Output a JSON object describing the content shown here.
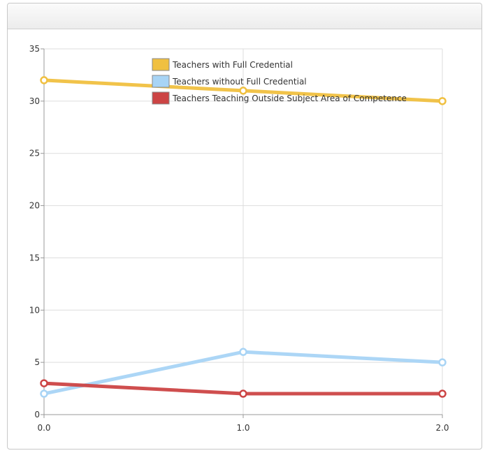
{
  "panel": {
    "title": ""
  },
  "chart_data": {
    "type": "line",
    "x": [
      0.0,
      1.0,
      2.0
    ],
    "x_tick_labels": [
      "0.0",
      "1.0",
      "2.0"
    ],
    "y_ticks": [
      0,
      5,
      10,
      15,
      20,
      25,
      30,
      35
    ],
    "ylim": [
      0,
      35
    ],
    "xlim": [
      0,
      2
    ],
    "grid": true,
    "legend_placement": "top",
    "series": [
      {
        "name": "Teachers with Full Credential",
        "values": [
          32,
          31,
          30
        ],
        "color": "#f0c040"
      },
      {
        "name": "Teachers without Full Credential",
        "values": [
          2,
          6,
          5
        ],
        "color": "#a8d4f5"
      },
      {
        "name": "Teachers Teaching Outside Subject Area of Competence",
        "values": [
          3,
          2,
          2
        ],
        "color": "#cc4444"
      }
    ]
  }
}
